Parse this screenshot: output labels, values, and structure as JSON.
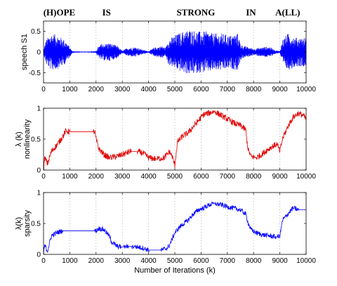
{
  "figure": {
    "words": [
      {
        "text": "(H)OPE",
        "x": 600
      },
      {
        "text": "IS",
        "x": 2400
      },
      {
        "text": "STRONG",
        "x": 5800
      },
      {
        "text": "IN",
        "x": 7900
      },
      {
        "text": "A(LL)",
        "x": 9300
      }
    ],
    "shared_xlabel": "Number of Iterations (k)"
  },
  "chart_data": [
    {
      "type": "line",
      "title": "",
      "xlabel": "",
      "ylabel": "speech S1",
      "xlim": [
        0,
        10000
      ],
      "ylim": [
        -0.75,
        0.75
      ],
      "xticks": [
        0,
        1000,
        2000,
        3000,
        4000,
        5000,
        6000,
        7000,
        8000,
        9000,
        10000
      ],
      "yticks": [
        -0.5,
        0,
        0.5
      ],
      "grid": "vertical dotted",
      "color": "#0000ff",
      "series": [
        {
          "kind": "waveform_envelope",
          "x": [
            0,
            100,
            300,
            500,
            800,
            1000,
            1100,
            1500,
            2000,
            2050,
            2200,
            2500,
            2800,
            3000,
            3200,
            3500,
            3800,
            4000,
            4200,
            4500,
            4650,
            4750,
            5000,
            5300,
            5600,
            5900,
            6200,
            6500,
            6800,
            7100,
            7400,
            7500,
            7600,
            7800,
            8000,
            8200,
            8400,
            8600,
            8800,
            9000,
            9100,
            9300,
            9600,
            10000
          ],
          "amp": [
            0.05,
            0.3,
            0.45,
            0.42,
            0.3,
            0.12,
            0.02,
            0.01,
            0.02,
            0.1,
            0.2,
            0.22,
            0.15,
            0.03,
            0.1,
            0.12,
            0.05,
            0.02,
            0.1,
            0.15,
            0.1,
            0.3,
            0.4,
            0.5,
            0.55,
            0.5,
            0.5,
            0.45,
            0.45,
            0.4,
            0.45,
            0.2,
            0.15,
            0.12,
            0.08,
            0.1,
            0.12,
            0.13,
            0.05,
            0.02,
            0.3,
            0.45,
            0.35,
            0.35
          ]
        }
      ]
    },
    {
      "type": "line",
      "title": "",
      "xlabel": "",
      "ylabel": "λ (k)",
      "ylabel2": "nonlinearity",
      "xlim": [
        0,
        10000
      ],
      "ylim": [
        0,
        1
      ],
      "xticks": [
        0,
        1000,
        2000,
        3000,
        4000,
        5000,
        6000,
        7000,
        8000,
        9000,
        10000
      ],
      "yticks": [
        0,
        0.5,
        1
      ],
      "grid": "vertical dotted",
      "color": "#e00000",
      "series": [
        {
          "x": [
            0,
            50,
            150,
            300,
            500,
            700,
            850,
            1000,
            1500,
            1950,
            2000,
            2100,
            2300,
            2500,
            2800,
            3000,
            3300,
            3600,
            3800,
            4000,
            4300,
            4600,
            4800,
            4900,
            5000,
            5100,
            5300,
            5500,
            5700,
            5900,
            6100,
            6300,
            6500,
            6700,
            6900,
            7100,
            7300,
            7500,
            7700,
            7750,
            7800,
            7900,
            8100,
            8300,
            8500,
            8700,
            8900,
            9000,
            9100,
            9300,
            9500,
            9700,
            9900,
            10000
          ],
          "y": [
            0.02,
            0.2,
            0.1,
            0.3,
            0.4,
            0.52,
            0.63,
            0.62,
            0.62,
            0.62,
            0.5,
            0.35,
            0.25,
            0.2,
            0.22,
            0.25,
            0.3,
            0.3,
            0.27,
            0.2,
            0.18,
            0.2,
            0.3,
            0.22,
            0.08,
            0.45,
            0.55,
            0.6,
            0.7,
            0.8,
            0.9,
            0.92,
            0.95,
            0.9,
            0.85,
            0.8,
            0.75,
            0.72,
            0.65,
            0.45,
            0.32,
            0.22,
            0.2,
            0.25,
            0.32,
            0.38,
            0.42,
            0.3,
            0.5,
            0.7,
            0.85,
            0.92,
            0.88,
            0.82
          ],
          "noise": 0.05
        }
      ]
    },
    {
      "type": "line",
      "title": "",
      "xlabel": "Number of Iterations (k)",
      "ylabel": "λ(k)",
      "ylabel2": "sparsity",
      "xlim": [
        0,
        10000
      ],
      "ylim": [
        0,
        1
      ],
      "xticks": [
        0,
        1000,
        2000,
        3000,
        4000,
        5000,
        6000,
        7000,
        8000,
        9000,
        10000
      ],
      "yticks": [
        0,
        0.5,
        1
      ],
      "grid": "vertical dotted",
      "color": "#0000ff",
      "series": [
        {
          "x": [
            0,
            50,
            150,
            300,
            500,
            700,
            900,
            1500,
            2000,
            2100,
            2300,
            2500,
            2600,
            2800,
            3000,
            3300,
            3600,
            3800,
            4000,
            4500,
            4700,
            4800,
            4900,
            5000,
            5200,
            5500,
            5700,
            5900,
            6100,
            6300,
            6500,
            6800,
            7000,
            7200,
            7500,
            7700,
            7800,
            7900,
            8100,
            8300,
            8600,
            8900,
            9000,
            9100,
            9300,
            9500,
            9700,
            9900,
            10000
          ],
          "y": [
            0.02,
            0.15,
            0.05,
            0.3,
            0.35,
            0.38,
            0.38,
            0.38,
            0.38,
            0.42,
            0.4,
            0.3,
            0.2,
            0.13,
            0.12,
            0.13,
            0.12,
            0.1,
            0.07,
            0.07,
            0.1,
            0.15,
            0.25,
            0.35,
            0.45,
            0.55,
            0.65,
            0.72,
            0.75,
            0.8,
            0.82,
            0.8,
            0.77,
            0.75,
            0.72,
            0.65,
            0.5,
            0.4,
            0.35,
            0.32,
            0.3,
            0.28,
            0.3,
            0.55,
            0.65,
            0.75,
            0.72,
            0.72,
            0.72
          ],
          "noise": 0.04
        }
      ]
    }
  ]
}
